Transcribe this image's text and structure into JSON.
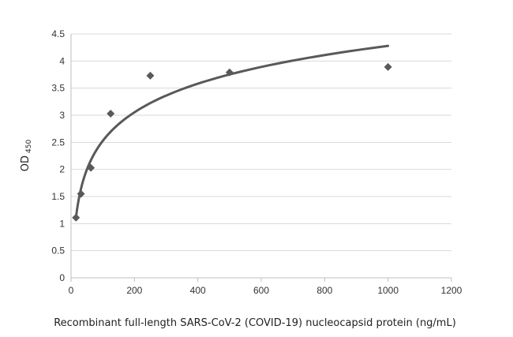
{
  "chart_data": {
    "type": "scatter",
    "xlabel": "Recombinant  full-length SARS-CoV-2 (COVID-19) nucleocapsid protein  (ng/mL)",
    "ylabel": {
      "main": "OD",
      "subscript": "450"
    },
    "xlim": [
      0,
      1200
    ],
    "ylim": [
      0,
      4.5
    ],
    "xticks": [
      "0",
      "200",
      "400",
      "600",
      "800",
      "1000",
      "1200"
    ],
    "yticks": [
      "0",
      "0.5",
      "1",
      "1.5",
      "2",
      "2.5",
      "3",
      "3.5",
      "4",
      "4.5"
    ],
    "grid": "horizontal",
    "legend": "none",
    "series": [
      {
        "marker": "diamond",
        "color": "#595959",
        "points": [
          {
            "x": 15.6,
            "y": 1.11
          },
          {
            "x": 31.25,
            "y": 1.55
          },
          {
            "x": 62.5,
            "y": 2.03
          },
          {
            "x": 125,
            "y": 3.03
          },
          {
            "x": 250,
            "y": 3.73
          },
          {
            "x": 500,
            "y": 3.79
          },
          {
            "x": 1000,
            "y": 3.89
          }
        ]
      }
    ],
    "trendline": {
      "type": "logarithmic",
      "color": "#595959",
      "x_range": [
        15.6,
        1000
      ],
      "y_start": 1.11,
      "y_end": 4.28
    }
  }
}
